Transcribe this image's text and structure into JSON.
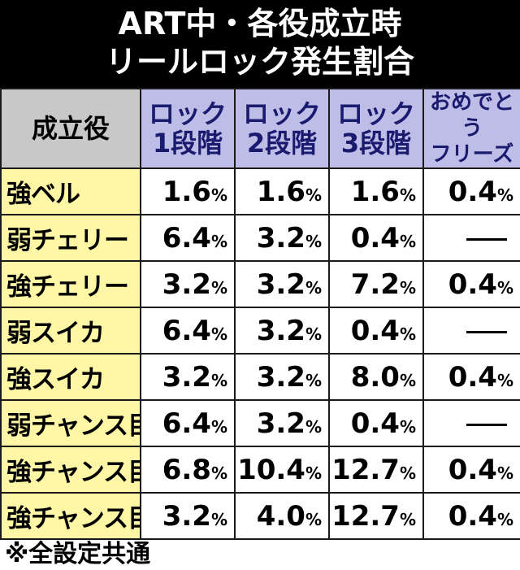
{
  "title": {
    "line1": "ART中・各役成立時",
    "line2": "リールロック発生割合"
  },
  "table": {
    "headers": {
      "role": "成立役",
      "lock1": [
        "ロック",
        "1段階"
      ],
      "lock2": [
        "ロック",
        "2段階"
      ],
      "lock3": [
        "ロック",
        "3段階"
      ],
      "freeze": [
        "おめでとう",
        "フリーズ"
      ]
    },
    "unit": "%",
    "rows": [
      {
        "role": "強ベル",
        "lock1": "1.6",
        "lock2": "1.6",
        "lock3": "1.6",
        "freeze": "0.4"
      },
      {
        "role": "弱チェリー",
        "lock1": "6.4",
        "lock2": "3.2",
        "lock3": "0.4",
        "freeze": null
      },
      {
        "role": "強チェリー",
        "lock1": "3.2",
        "lock2": "3.2",
        "lock3": "7.2",
        "freeze": "0.4"
      },
      {
        "role": "弱スイカ",
        "lock1": "6.4",
        "lock2": "3.2",
        "lock3": "0.4",
        "freeze": null
      },
      {
        "role": "強スイカ",
        "lock1": "3.2",
        "lock2": "3.2",
        "lock3": "8.0",
        "freeze": "0.4"
      },
      {
        "role": "弱チャンス目",
        "lock1": "6.4",
        "lock2": "3.2",
        "lock3": "0.4",
        "freeze": null
      },
      {
        "role": "強チャンス目A",
        "lock1": "6.8",
        "lock2": "10.4",
        "lock3": "12.7",
        "freeze": "0.4"
      },
      {
        "role": "強チャンス目B",
        "lock1": "3.2",
        "lock2": "4.0",
        "lock3": "12.7",
        "freeze": "0.4"
      }
    ]
  },
  "note": "※全設定共通"
}
